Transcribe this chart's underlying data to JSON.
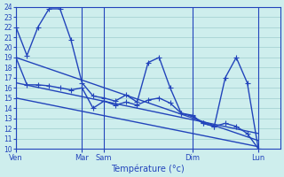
{
  "bg_color": "#ceeeed",
  "line_color": "#2244bb",
  "grid_color": "#9ecece",
  "xlabel": "Température (°c)",
  "ylim": [
    10,
    24
  ],
  "yticks": [
    10,
    11,
    12,
    13,
    14,
    15,
    16,
    17,
    18,
    19,
    20,
    21,
    22,
    23,
    24
  ],
  "xlim": [
    0,
    24
  ],
  "vlines": [
    0,
    6,
    8,
    16,
    22
  ],
  "xtick_positions": [
    0,
    6,
    8,
    16,
    22
  ],
  "xtick_labels": [
    "Ven",
    "Mar",
    "Sam",
    "Dim",
    "Lun"
  ],
  "line_max": {
    "x": [
      0,
      1,
      2,
      3,
      4,
      5,
      6,
      7,
      8,
      9,
      10,
      11,
      12,
      13,
      14,
      15,
      16,
      17,
      18,
      19,
      20,
      21,
      22
    ],
    "y": [
      22,
      19.2,
      22,
      23.8,
      23.8,
      20.7,
      16.5,
      15.2,
      15.0,
      14.7,
      15.3,
      14.6,
      18.5,
      19.0,
      16.0,
      13.5,
      13.3,
      12.5,
      12.2,
      17.0,
      19.0,
      16.5,
      10.0
    ]
  },
  "line_min": {
    "x": [
      0,
      1,
      2,
      3,
      4,
      5,
      6,
      7,
      8,
      9,
      10,
      11,
      12,
      13,
      14,
      15,
      16,
      17,
      18,
      19,
      20,
      21,
      22
    ],
    "y": [
      19.0,
      16.3,
      16.3,
      16.2,
      16.0,
      15.8,
      16.0,
      14.0,
      14.7,
      14.3,
      14.6,
      14.3,
      14.8,
      15.0,
      14.5,
      13.5,
      13.2,
      12.5,
      12.2,
      12.5,
      12.2,
      11.5,
      10.0
    ]
  },
  "reg_lines": [
    {
      "x0": 0,
      "y0": 19.0,
      "x1": 22,
      "y1": 10.8
    },
    {
      "x0": 0,
      "y0": 16.5,
      "x1": 22,
      "y1": 11.5
    },
    {
      "x0": 0,
      "y0": 15.0,
      "x1": 22,
      "y1": 10.2
    }
  ],
  "marker": "+",
  "markersize": 4,
  "linewidth": 1.0
}
